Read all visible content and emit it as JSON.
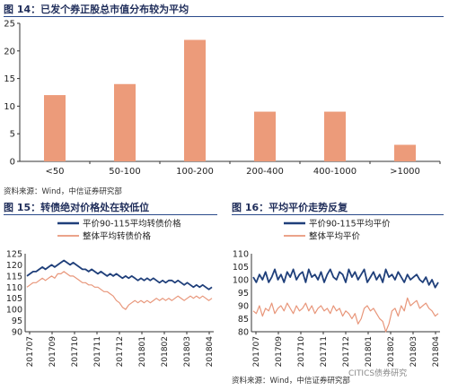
{
  "figures": [
    {
      "title": "图 14：已发个券正股总市值分布较为平均",
      "source": "资料来源：Wind，中信证券研究部"
    },
    {
      "title": "图 15：转债绝对价格处在较低位",
      "source": "资料来源：Wind，中信证券研究部"
    },
    {
      "title": "图 16：平均平价走势反复",
      "source": "资料来源：Wind，中信证券研究部"
    }
  ],
  "watermark": "CITICS债券研究",
  "colors": {
    "navy": "#1f3f7a",
    "salmon": "#e8967a",
    "bar": "#ec9b7a"
  },
  "chart_data": [
    {
      "type": "bar",
      "title": "",
      "categories": [
        "<50",
        "50-100",
        "100-200",
        "200-400",
        "400-1000",
        ">1000"
      ],
      "values": [
        12,
        14,
        22,
        9,
        9,
        3
      ],
      "ylim": [
        0,
        25
      ],
      "yticks": [
        0,
        5,
        10,
        15,
        20,
        25
      ],
      "grid": false
    },
    {
      "type": "line",
      "title": "",
      "ylim": [
        90,
        125
      ],
      "yticks": [
        90,
        95,
        100,
        105,
        110,
        115,
        120,
        125
      ],
      "xticks": [
        "201707",
        "201709",
        "201710",
        "201711",
        "201712",
        "201801",
        "201802",
        "201803",
        "201804"
      ],
      "legend_position": "top",
      "series": [
        {
          "name": "平价90-115平均转债价格",
          "values": [
            115,
            116,
            117,
            117,
            118,
            119,
            118,
            119,
            120,
            119,
            120,
            121,
            122,
            121,
            120,
            121,
            120,
            119,
            118,
            118,
            117,
            118,
            117,
            116,
            117,
            116,
            115,
            116,
            115,
            116,
            115,
            114,
            115,
            114,
            115,
            114,
            113,
            114,
            113,
            114,
            113,
            114,
            113,
            112,
            113,
            112,
            113,
            113,
            112,
            113,
            112,
            111,
            112,
            111,
            110,
            111,
            110,
            111,
            110,
            109,
            110
          ]
        },
        {
          "name": "整体平均转债价格",
          "values": [
            110,
            111,
            112,
            112,
            113,
            114,
            113,
            114,
            115,
            114,
            116,
            116,
            117,
            116,
            115,
            115,
            114,
            113,
            112,
            112,
            111,
            111,
            110,
            110,
            109,
            108,
            108,
            107,
            106,
            104,
            103,
            101,
            100,
            102,
            103,
            104,
            103,
            104,
            103,
            104,
            103,
            104,
            105,
            104,
            105,
            104,
            105,
            104,
            105,
            106,
            105,
            104,
            105,
            106,
            105,
            106,
            105,
            106,
            105,
            104,
            105
          ]
        }
      ]
    },
    {
      "type": "line",
      "title": "",
      "ylim": [
        80,
        110
      ],
      "yticks": [
        80,
        85,
        90,
        95,
        100,
        105,
        110
      ],
      "xticks": [
        "201707",
        "201709",
        "201710",
        "201711",
        "201712",
        "201801",
        "201802",
        "201803",
        "201804"
      ],
      "legend_position": "top",
      "series": [
        {
          "name": "平价90-115平均平价",
          "values": [
            101,
            99,
            102,
            100,
            103,
            99,
            101,
            104,
            100,
            102,
            99,
            103,
            101,
            104,
            100,
            102,
            103,
            99,
            104,
            101,
            102,
            100,
            103,
            99,
            102,
            104,
            101,
            100,
            103,
            102,
            99,
            104,
            101,
            103,
            100,
            102,
            104,
            99,
            101,
            103,
            100,
            102,
            99,
            104,
            101,
            102,
            100,
            103,
            101,
            99,
            102,
            100,
            101,
            102,
            100,
            99,
            101,
            98,
            100,
            97,
            99
          ]
        },
        {
          "name": "整体平均平价",
          "values": [
            88,
            87,
            90,
            86,
            89,
            88,
            91,
            87,
            89,
            90,
            88,
            91,
            89,
            87,
            90,
            88,
            89,
            91,
            88,
            90,
            87,
            89,
            90,
            88,
            89,
            87,
            90,
            88,
            89,
            86,
            88,
            87,
            85,
            87,
            83,
            85,
            89,
            90,
            88,
            89,
            87,
            85,
            84,
            80,
            83,
            88,
            89,
            86,
            90,
            88,
            93,
            90,
            91,
            92,
            89,
            90,
            91,
            89,
            88,
            86,
            87
          ]
        }
      ]
    }
  ]
}
